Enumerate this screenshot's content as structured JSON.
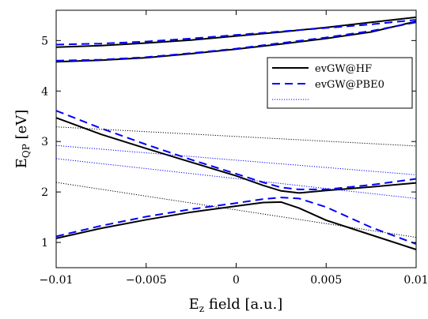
{
  "chart_data": {
    "type": "line",
    "xlabel": "E",
    "xlabel_sub": "z",
    "xlabel_rest": " field [a.u.]",
    "ylabel": "E",
    "ylabel_sub": "QP",
    "ylabel_rest": " [eV]",
    "xlim": [
      -0.01,
      0.01
    ],
    "ylim": [
      0.5,
      5.6
    ],
    "xticks": [
      -0.01,
      -0.005,
      0,
      0.005,
      0.01
    ],
    "xtick_labels": [
      "−0.01",
      "−0.005",
      "0",
      "0.005",
      "0.01"
    ],
    "yticks": [
      1,
      2,
      3,
      4,
      5
    ],
    "ytick_labels": [
      "1",
      "2",
      "3",
      "4",
      "5"
    ],
    "grid": false,
    "legend_position": "right, upper-middle",
    "legend": [
      {
        "label": "evGW@HF",
        "color": "#000000",
        "style": "solid"
      },
      {
        "label": "evGW@PBE0",
        "color": "#0000ff",
        "style": "dashed"
      },
      {
        "label": "",
        "color": "#0000ff",
        "style": "dotted"
      }
    ],
    "series": [
      {
        "name": "evGW@HF",
        "color": "#000000",
        "style": "solid",
        "width": 2,
        "x": [
          -0.01,
          -0.0075,
          -0.005,
          -0.0025,
          0,
          0.0025,
          0.005,
          0.0075,
          0.01
        ],
        "y": [
          4.87,
          4.9,
          4.95,
          5.01,
          5.09,
          5.17,
          5.26,
          5.36,
          5.46
        ]
      },
      {
        "name": "evGW@HF",
        "color": "#000000",
        "style": "solid",
        "width": 2,
        "x": [
          -0.01,
          -0.0075,
          -0.005,
          -0.0025,
          0,
          0.0025,
          0.005,
          0.0075,
          0.01
        ],
        "y": [
          4.58,
          4.61,
          4.66,
          4.74,
          4.83,
          4.93,
          5.04,
          5.17,
          5.38
        ]
      },
      {
        "name": "evGW@HF",
        "color": "#000000",
        "style": "solid",
        "width": 2,
        "x": [
          -0.01,
          -0.0075,
          -0.005,
          -0.0025,
          0,
          0.0015,
          0.0025,
          0.0035,
          0.005,
          0.0075,
          0.01
        ],
        "y": [
          3.47,
          3.14,
          2.86,
          2.59,
          2.32,
          2.13,
          2.02,
          1.98,
          2.03,
          2.1,
          2.18
        ]
      },
      {
        "name": "evGW@HF",
        "color": "#000000",
        "style": "solid",
        "width": 2,
        "x": [
          -0.01,
          -0.0075,
          -0.005,
          -0.0025,
          0,
          0.0015,
          0.0025,
          0.0035,
          0.005,
          0.0075,
          0.01
        ],
        "y": [
          1.08,
          1.28,
          1.45,
          1.6,
          1.72,
          1.79,
          1.8,
          1.68,
          1.44,
          1.15,
          0.86
        ]
      },
      {
        "name": "evGW@PBE0",
        "color": "#0000ff",
        "style": "dashed",
        "width": 2,
        "x": [
          -0.01,
          -0.0075,
          -0.005,
          -0.0025,
          0,
          0.0025,
          0.005,
          0.0075,
          0.01
        ],
        "y": [
          4.92,
          4.94,
          4.98,
          5.04,
          5.11,
          5.18,
          5.25,
          5.32,
          5.41
        ]
      },
      {
        "name": "evGW@PBE0",
        "color": "#0000ff",
        "style": "dashed",
        "width": 2,
        "x": [
          -0.01,
          -0.0075,
          -0.005,
          -0.0025,
          0,
          0.0025,
          0.005,
          0.0075,
          0.01
        ],
        "y": [
          4.6,
          4.62,
          4.67,
          4.75,
          4.84,
          4.95,
          5.06,
          5.19,
          5.36
        ]
      },
      {
        "name": "evGW@PBE0",
        "color": "#0000ff",
        "style": "dashed",
        "width": 2,
        "x": [
          -0.01,
          -0.0075,
          -0.005,
          -0.0025,
          0,
          0.0015,
          0.0025,
          0.0035,
          0.005,
          0.0075,
          0.01
        ],
        "y": [
          3.61,
          3.26,
          2.94,
          2.64,
          2.36,
          2.19,
          2.09,
          2.05,
          2.05,
          2.14,
          2.26
        ]
      },
      {
        "name": "evGW@PBE0",
        "color": "#0000ff",
        "style": "dashed",
        "width": 2,
        "x": [
          -0.01,
          -0.0075,
          -0.005,
          -0.0025,
          0,
          0.0015,
          0.0025,
          0.0035,
          0.005,
          0.0075,
          0.01
        ],
        "y": [
          1.12,
          1.33,
          1.51,
          1.66,
          1.78,
          1.86,
          1.89,
          1.87,
          1.7,
          1.3,
          0.97
        ]
      },
      {
        "name": "",
        "color": "#000000",
        "style": "dotted",
        "width": 1,
        "x": [
          -0.01,
          0.01
        ],
        "y": [
          3.29,
          2.91
        ]
      },
      {
        "name": "",
        "color": "#000000",
        "style": "dotted",
        "width": 1,
        "x": [
          -0.01,
          0.01
        ],
        "y": [
          2.19,
          1.1
        ]
      },
      {
        "name": "",
        "color": "#0000ff",
        "style": "dotted",
        "width": 1,
        "x": [
          -0.01,
          0.01
        ],
        "y": [
          2.92,
          2.34
        ]
      },
      {
        "name": "",
        "color": "#0000ff",
        "style": "dotted",
        "width": 1,
        "x": [
          -0.01,
          0.01
        ],
        "y": [
          2.66,
          1.87
        ]
      }
    ]
  }
}
